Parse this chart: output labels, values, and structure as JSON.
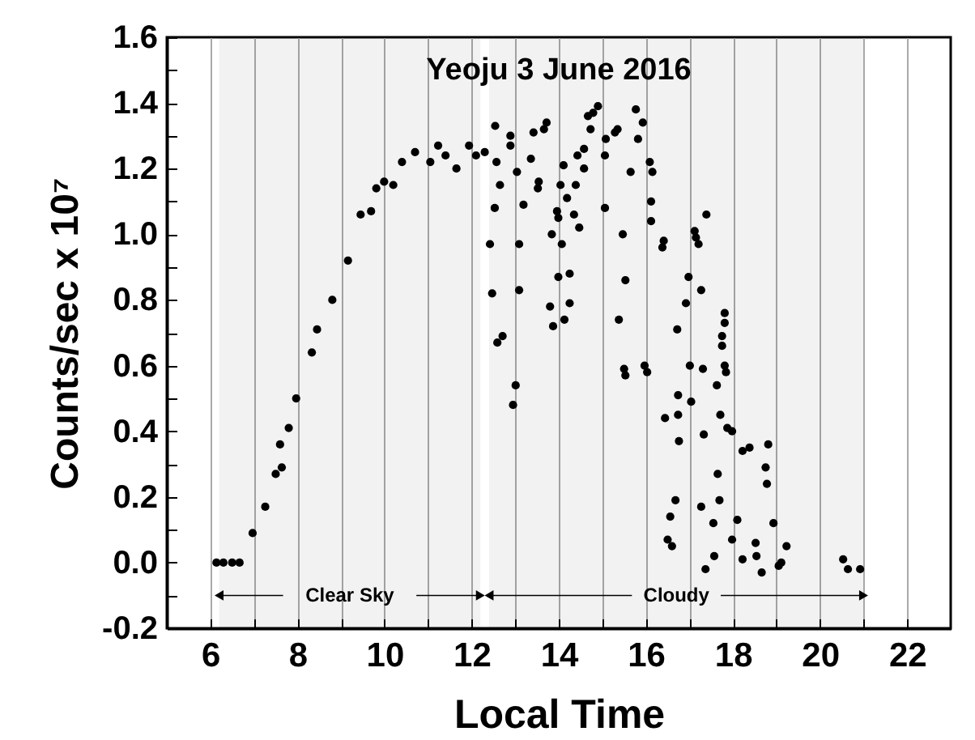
{
  "chart_data": {
    "type": "scatter",
    "title": "Yeoju 3 June 2016",
    "xlabel": "Local Time",
    "ylabel": "Counts/sec x 10⁷",
    "xlim": [
      5,
      23
    ],
    "ylim": [
      -0.2,
      1.6
    ],
    "xticks": [
      6,
      {
        "value": 7,
        "label": null
      },
      8,
      {
        "value": 9,
        "label": null
      },
      10,
      {
        "value": 11,
        "label": null
      },
      12,
      {
        "value": 13,
        "label": null
      },
      14,
      {
        "value": 15,
        "label": null
      },
      16,
      {
        "value": 17,
        "label": null
      },
      18,
      {
        "value": 19,
        "label": null
      },
      20,
      {
        "value": 21,
        "label": null
      },
      22
    ],
    "yticks": [
      {
        "value": -0.2,
        "label": "-0.2"
      },
      {
        "value": -0.1,
        "label": null
      },
      {
        "value": 0,
        "label": "0.0"
      },
      {
        "value": 0.1,
        "label": null
      },
      {
        "value": 0.2,
        "label": "0.2"
      },
      {
        "value": 0.3,
        "label": null
      },
      {
        "value": 0.4,
        "label": "0.4"
      },
      {
        "value": 0.5,
        "label": null
      },
      {
        "value": 0.6,
        "label": "0.6"
      },
      {
        "value": 0.7,
        "label": null
      },
      {
        "value": 0.8,
        "label": "0.8"
      },
      {
        "value": 0.9,
        "label": null
      },
      {
        "value": 1.0,
        "label": "1.0"
      },
      {
        "value": 1.1,
        "label": null
      },
      {
        "value": 1.2,
        "label": "1.2"
      },
      {
        "value": 1.3,
        "label": null
      },
      {
        "value": 1.4,
        "label": "1.4"
      },
      {
        "value": 1.5,
        "label": null
      },
      {
        "value": 1.6,
        "label": "1.6"
      }
    ],
    "grid": "x",
    "marker": "circle",
    "bands": [
      {
        "axis": "x",
        "from": 6.2,
        "to": 12.2,
        "label": "Clear Sky"
      },
      {
        "axis": "x",
        "from": 12.4,
        "to": 21.0,
        "label": "Cloudy"
      }
    ],
    "series": [
      {
        "color": "#000000",
        "x": [
          6.14,
          6.3,
          6.5,
          6.67,
          6.97,
          7.26,
          7.5,
          7.64,
          7.6,
          7.8,
          7.97,
          8.33,
          8.45,
          8.8,
          9.16,
          9.45,
          9.69,
          9.81,
          9.99,
          10.2,
          10.4,
          10.7,
          11.05,
          11.23,
          11.4,
          11.65,
          11.94,
          12.1,
          12.3,
          12.54,
          12.42,
          12.47,
          12.53,
          12.57,
          12.59,
          12.65,
          12.71,
          12.89,
          12.89,
          12.95,
          13.01,
          13.04,
          13.09,
          13.09,
          13.19,
          13.36,
          13.42,
          13.52,
          13.54,
          13.66,
          13.72,
          13.8,
          13.84,
          13.87,
          13.96,
          13.99,
          13.99,
          14.04,
          14.07,
          14.11,
          14.13,
          14.19,
          14.25,
          14.25,
          14.35,
          14.39,
          14.47,
          14.43,
          14.58,
          14.58,
          14.67,
          14.73,
          14.79,
          14.9,
          15.06,
          15.06,
          15.08,
          15.29,
          15.35,
          15.38,
          15.47,
          15.5,
          15.53,
          15.53,
          15.65,
          15.77,
          15.82,
          15.93,
          15.97,
          16.03,
          16.09,
          16.12,
          16.15,
          16.12,
          16.38,
          16.41,
          16.44,
          16.5,
          16.56,
          16.6,
          16.68,
          16.72,
          16.74,
          16.74,
          16.76,
          16.92,
          16.98,
          17.01,
          17.04,
          17.12,
          17.15,
          17.21,
          17.27,
          17.27,
          17.31,
          17.33,
          17.37,
          17.39,
          17.55,
          17.57,
          17.63,
          17.65,
          17.69,
          17.75,
          17.75,
          17.71,
          17.81,
          17.81,
          17.81,
          17.84,
          17.87,
          17.98,
          17.98,
          18.1,
          18.22,
          18.22,
          18.38,
          18.52,
          18.54,
          18.66,
          18.75,
          18.78,
          18.81,
          18.93,
          19.05,
          19.11,
          19.23,
          20.53,
          20.64,
          20.92
        ],
        "values": [
          0.0,
          0.0,
          0.0,
          0.0,
          0.09,
          0.17,
          0.27,
          0.29,
          0.36,
          0.41,
          0.5,
          0.64,
          0.71,
          0.8,
          0.92,
          1.06,
          1.07,
          1.14,
          1.16,
          1.15,
          1.22,
          1.25,
          1.22,
          1.27,
          1.24,
          1.2,
          1.27,
          1.24,
          1.25,
          1.33,
          0.97,
          0.82,
          1.08,
          1.22,
          0.67,
          1.15,
          0.69,
          1.3,
          1.27,
          0.48,
          0.54,
          1.19,
          0.97,
          0.83,
          1.09,
          1.23,
          1.31,
          1.14,
          1.16,
          1.32,
          1.34,
          0.78,
          1.0,
          0.72,
          1.07,
          1.05,
          0.87,
          1.15,
          0.97,
          1.21,
          0.74,
          1.11,
          0.88,
          0.79,
          1.06,
          1.15,
          1.02,
          1.24,
          1.26,
          1.2,
          1.36,
          1.32,
          1.37,
          1.39,
          1.24,
          1.08,
          1.29,
          1.31,
          1.32,
          0.74,
          1.0,
          0.59,
          0.57,
          0.86,
          1.19,
          1.38,
          1.29,
          1.34,
          0.6,
          0.58,
          1.22,
          1.1,
          1.19,
          1.04,
          0.96,
          0.98,
          0.44,
          0.07,
          0.14,
          0.05,
          0.19,
          0.71,
          0.51,
          0.45,
          0.37,
          0.79,
          0.87,
          0.6,
          0.49,
          1.01,
          0.99,
          0.97,
          0.83,
          0.17,
          0.59,
          0.39,
          -0.02,
          1.06,
          0.12,
          0.02,
          0.54,
          0.27,
          0.19,
          0.69,
          0.66,
          0.45,
          0.76,
          0.73,
          0.6,
          0.58,
          0.41,
          0.4,
          0.07,
          0.13,
          0.34,
          0.01,
          0.35,
          0.06,
          0.02,
          -0.03,
          0.29,
          0.24,
          0.36,
          0.12,
          -0.01,
          0.0,
          0.05,
          0.01,
          -0.02,
          -0.02
        ]
      }
    ]
  }
}
